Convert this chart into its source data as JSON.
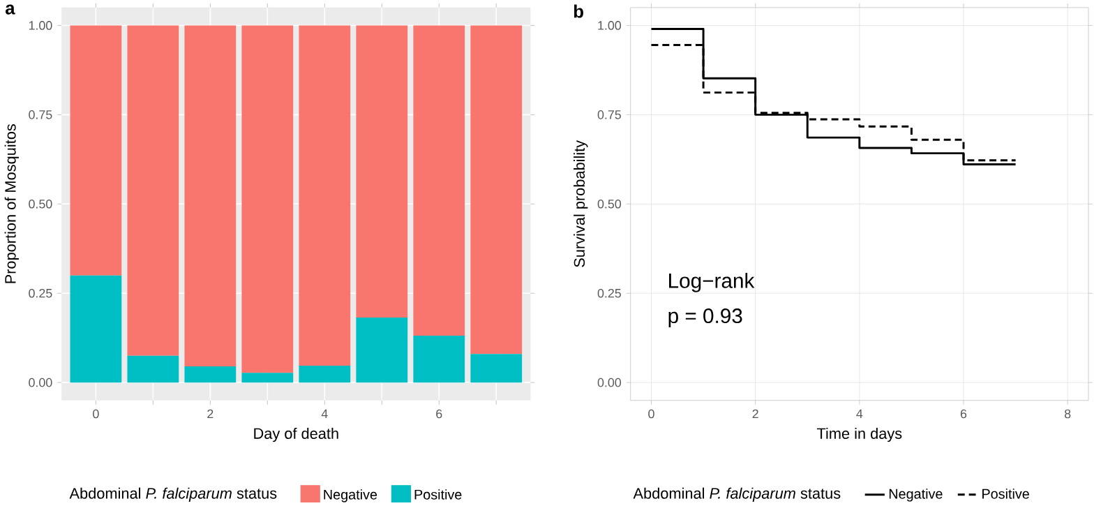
{
  "chart_data": [
    {
      "type": "bar",
      "title": "a",
      "stacked": true,
      "categories": [
        "0",
        null,
        "2",
        null,
        "4",
        null,
        "6",
        null
      ],
      "series": [
        {
          "name": "Positive",
          "color": "#00bfc4",
          "values": [
            0.3,
            0.075,
            0.045,
            0.027,
            0.047,
            0.182,
            0.131,
            0.08
          ]
        },
        {
          "name": "Negative",
          "color": "#f8766d",
          "values": [
            0.7,
            0.925,
            0.955,
            0.973,
            0.953,
            0.818,
            0.869,
            0.92
          ]
        }
      ],
      "xlabel": "Day of death",
      "ylabel": "Proportion of Mosquitos",
      "ylim": [
        -0.05,
        1.05
      ],
      "yticks": [
        {
          "value": 0,
          "label": "0.00"
        },
        {
          "value": 0.25,
          "label": "0.25"
        },
        {
          "value": 0.5,
          "label": "0.50"
        },
        {
          "value": 0.75,
          "label": "0.75"
        },
        {
          "value": 1,
          "label": "1.00"
        }
      ],
      "grid": true,
      "legend": "bottom",
      "legend_title": "Abdominal *P. falciparum* status"
    },
    {
      "type": "step",
      "title": "b",
      "x": [
        0,
        1,
        2,
        3,
        4,
        5,
        6,
        7
      ],
      "series": [
        {
          "name": "Negative",
          "color": "#000000",
          "line_style": "solid",
          "values": [
            0.99,
            0.852,
            0.75,
            0.686,
            0.657,
            0.642,
            0.611,
            0.611
          ]
        },
        {
          "name": "Positive",
          "color": "#000000",
          "line_style": "dashed",
          "values": [
            0.945,
            0.812,
            0.755,
            0.737,
            0.717,
            0.68,
            0.622,
            0.622
          ]
        }
      ],
      "xlabel": "Time in days",
      "ylabel": "Survival probability",
      "xlim": [
        -0.4,
        8.4
      ],
      "xticks": [
        0,
        2,
        4,
        6,
        8
      ],
      "ylim": [
        -0.05,
        1.05
      ],
      "yticks": [
        {
          "value": 0,
          "label": "0.00"
        },
        {
          "value": 0.25,
          "label": "0.25"
        },
        {
          "value": 0.5,
          "label": "0.50"
        },
        {
          "value": 0.75,
          "label": "0.75"
        },
        {
          "value": 1,
          "label": "1.00"
        }
      ],
      "grid": true,
      "legend": "bottom",
      "legend_title": "Abdominal *P. falciparum* status",
      "annotations": [
        "Log−rank",
        "p = 0.93"
      ]
    }
  ]
}
